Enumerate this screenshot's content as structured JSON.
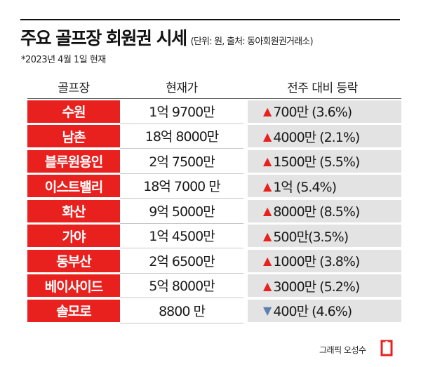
{
  "header": {
    "title": "주요 골프장 회원권 시세",
    "unit_note": "(단위: 원, 출처: 동아회원권거래소)",
    "date_note": "*2023년 4월 1일 현재"
  },
  "chart_data": {
    "type": "table",
    "columns": [
      "골프장",
      "현재가",
      "전주 대비 등락"
    ],
    "rows": [
      {
        "name": "수원",
        "price": "1억 9700만",
        "change": "700만 (3.6%)",
        "direction": "up"
      },
      {
        "name": "남촌",
        "price": "18억 8000만",
        "change": "4000만 (2.1%)",
        "direction": "up"
      },
      {
        "name": "블루원용인",
        "price": "2억 7500만",
        "change": "1500만 (5.5%)",
        "direction": "up"
      },
      {
        "name": "이스트밸리",
        "price": "18억 7000 만",
        "change": "1억 (5.4%)",
        "direction": "up"
      },
      {
        "name": "화산",
        "price": "9억 5000만",
        "change": "8000만 (8.5%)",
        "direction": "up"
      },
      {
        "name": "가야",
        "price": "1억 4500만",
        "change": "500만(3.5%)",
        "direction": "up"
      },
      {
        "name": "동부산",
        "price": "2억 6500만",
        "change": "1000만 (3.8%)",
        "direction": "up"
      },
      {
        "name": "베이사이드",
        "price": "5억 8000만",
        "change": "3000만 (5.2%)",
        "direction": "up"
      },
      {
        "name": "솔모로",
        "price": "8800 만",
        "change": "400만 (4.6%)",
        "direction": "down"
      }
    ]
  },
  "footer": {
    "credit": "그래픽 오성수"
  },
  "colors": {
    "accent_red": "#e8211f",
    "cell_gray": "#e3e3e3",
    "down_blue": "#5d7fb0"
  }
}
